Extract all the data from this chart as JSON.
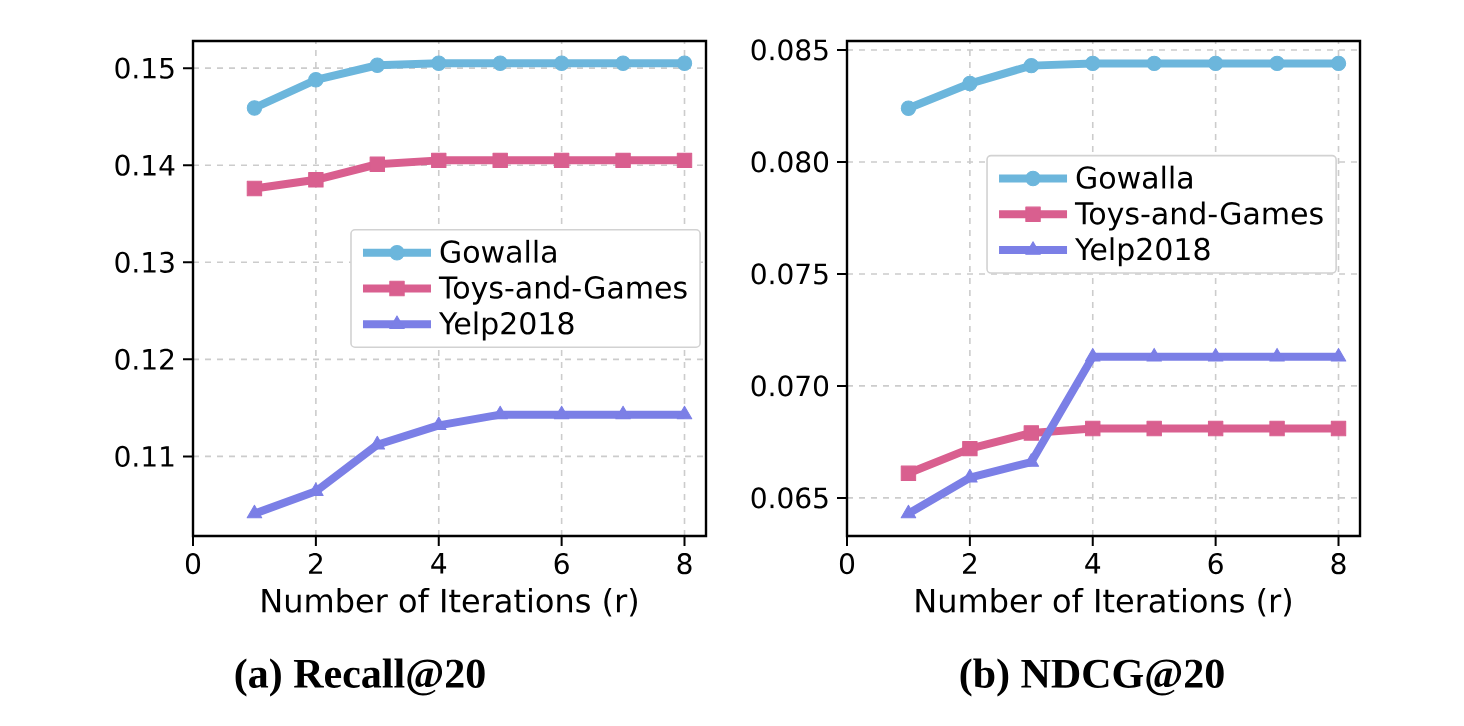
{
  "chart_data": [
    {
      "type": "line",
      "title": "(a) Recall@20",
      "xlabel": "Number of Iterations (r)",
      "x": [
        1,
        2,
        3,
        4,
        5,
        6,
        7,
        8
      ],
      "xlim": [
        0,
        8.35
      ],
      "xticks": [
        0,
        2,
        4,
        6,
        8
      ],
      "ylim": [
        0.1018,
        0.1528
      ],
      "yticks": [
        0.11,
        0.12,
        0.13,
        0.14,
        0.15
      ],
      "grid": true,
      "legend": "right",
      "line_style": "solid",
      "series": [
        {
          "name": "Gowalla",
          "color": "#6cb6dc",
          "marker": "circle",
          "values": [
            0.1459,
            0.1488,
            0.1503,
            0.1505,
            0.1505,
            0.1505,
            0.1505,
            0.1505
          ]
        },
        {
          "name": "Toys-and-Games",
          "color": "#d95f8f",
          "marker": "square",
          "values": [
            0.1376,
            0.1385,
            0.1401,
            0.1405,
            0.1405,
            0.1405,
            0.1405,
            0.1405
          ]
        },
        {
          "name": "Yelp2018",
          "color": "#7b7fe6",
          "marker": "triangle",
          "values": [
            0.1041,
            0.1064,
            0.1112,
            0.1132,
            0.1143,
            0.1143,
            0.1143,
            0.1143
          ]
        }
      ]
    },
    {
      "type": "line",
      "title": "(b) NDCG@20",
      "xlabel": "Number of Iterations (r)",
      "x": [
        1,
        2,
        3,
        4,
        5,
        6,
        7,
        8
      ],
      "xlim": [
        0,
        8.35
      ],
      "xticks": [
        0,
        2,
        4,
        6,
        8
      ],
      "ylim": [
        0.0633,
        0.0854
      ],
      "yticks": [
        0.065,
        {
          "value": 0.07,
          "label": "0.070"
        },
        0.075,
        {
          "value": 0.08,
          "label": "0.080"
        },
        0.085
      ],
      "grid": true,
      "legend": "top right",
      "line_style": "solid",
      "series": [
        {
          "name": "Gowalla",
          "color": "#6cb6dc",
          "marker": "circle",
          "values": [
            0.0824,
            0.0835,
            0.0843,
            0.0844,
            0.0844,
            0.0844,
            0.0844,
            0.0844
          ]
        },
        {
          "name": "Toys-and-Games",
          "color": "#d95f8f",
          "marker": "square",
          "values": [
            0.0661,
            0.0672,
            0.0679,
            0.0681,
            0.0681,
            0.0681,
            0.0681,
            0.0681
          ]
        },
        {
          "name": "Yelp2018",
          "color": "#7b7fe6",
          "marker": "triangle",
          "values": [
            0.0643,
            0.0659,
            0.0666,
            0.0713,
            0.0713,
            0.0713,
            0.0713,
            0.0713
          ]
        }
      ]
    }
  ]
}
